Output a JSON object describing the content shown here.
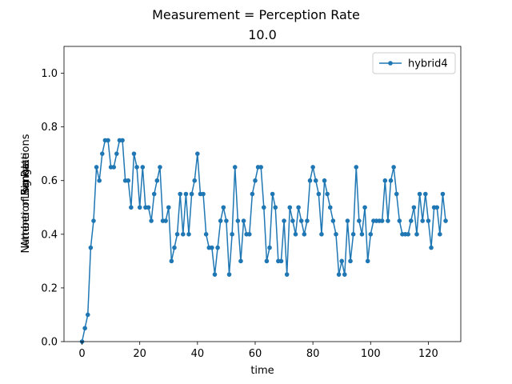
{
  "chart_data": {
    "type": "line",
    "suptitle": "Measurement = Perception Rate",
    "title": "10.0",
    "xlabel": "time",
    "ylabel_lines": [
      "Number of Simulations",
      "Attention Range",
      "Log Rate"
    ],
    "xlim": [
      -6.25,
      131.25
    ],
    "ylim": [
      0.0,
      1.1
    ],
    "x_ticks": [
      0,
      20,
      40,
      60,
      80,
      100,
      120
    ],
    "y_ticks": [
      0.0,
      0.2,
      0.4,
      0.6,
      0.8,
      1.0
    ],
    "x_tick_labels": [
      "0",
      "20",
      "40",
      "60",
      "80",
      "100",
      "120"
    ],
    "y_tick_labels": [
      "0.0",
      "0.2",
      "0.4",
      "0.6",
      "0.8",
      "1.0"
    ],
    "grid": false,
    "legend_position": "upper right",
    "series": [
      {
        "name": "hybrid4",
        "color": "#1f77b4",
        "marker": "circle",
        "values": [
          0.0,
          0.05,
          0.1,
          0.35,
          0.45,
          0.65,
          0.6,
          0.7,
          0.75,
          0.75,
          0.65,
          0.65,
          0.7,
          0.75,
          0.75,
          0.6,
          0.6,
          0.5,
          0.7,
          0.65,
          0.5,
          0.65,
          0.5,
          0.5,
          0.45,
          0.55,
          0.6,
          0.65,
          0.45,
          0.45,
          0.5,
          0.3,
          0.35,
          0.4,
          0.55,
          0.4,
          0.55,
          0.4,
          0.55,
          0.6,
          0.7,
          0.55,
          0.55,
          0.4,
          0.35,
          0.35,
          0.25,
          0.35,
          0.45,
          0.5,
          0.45,
          0.25,
          0.4,
          0.65,
          0.45,
          0.3,
          0.45,
          0.4,
          0.4,
          0.55,
          0.6,
          0.65,
          0.65,
          0.5,
          0.3,
          0.35,
          0.55,
          0.5,
          0.3,
          0.3,
          0.45,
          0.25,
          0.5,
          0.45,
          0.4,
          0.5,
          0.45,
          0.4,
          0.45,
          0.6,
          0.65,
          0.6,
          0.55,
          0.4,
          0.6,
          0.55,
          0.5,
          0.45,
          0.4,
          0.25,
          0.3,
          0.25,
          0.45,
          0.3,
          0.4,
          0.65,
          0.45,
          0.4,
          0.5,
          0.3,
          0.4,
          0.45,
          0.45,
          0.45,
          0.45,
          0.6,
          0.45,
          0.6,
          0.65,
          0.55,
          0.45,
          0.4,
          0.4,
          0.4,
          0.45,
          0.5,
          0.4,
          0.55,
          0.45,
          0.55,
          0.45,
          0.35,
          0.5,
          0.5,
          0.4,
          0.55,
          0.45
        ]
      }
    ]
  }
}
